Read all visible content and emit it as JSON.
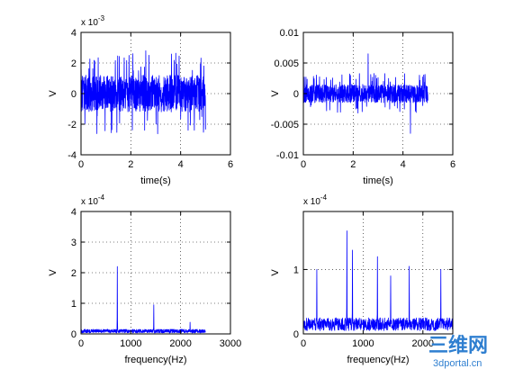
{
  "figure": {
    "background": "#ffffff",
    "line_color": "#0000ff",
    "axis_color": "#000000",
    "grid_color": "#000000"
  },
  "chart_data": [
    {
      "type": "line",
      "title": "",
      "xlabel": "time(s)",
      "ylabel": "V",
      "y_exponent": "x 10-3",
      "y_exponent_base": "x 10",
      "y_exponent_power": "-3",
      "xlim": [
        0,
        6
      ],
      "ylim": [
        -4,
        4
      ],
      "xticks": [
        0,
        2,
        4,
        6
      ],
      "xtick_labels": [
        "0",
        "2",
        "4",
        "6"
      ],
      "yticks": [
        -4,
        -2,
        0,
        2,
        4
      ],
      "ytick_labels": [
        "-4",
        "-2",
        "0",
        "2",
        "4"
      ],
      "grid": true,
      "signal": {
        "kind": "noise",
        "x_range": [
          0,
          5
        ],
        "center": 0,
        "typical_amplitude": 1.2,
        "peak_high": 2.8,
        "peak_low": -2.4,
        "samples": 900
      }
    },
    {
      "type": "line",
      "title": "",
      "xlabel": "time(s)",
      "ylabel": "V",
      "y_exponent": "",
      "xlim": [
        0,
        6
      ],
      "ylim": [
        -0.01,
        0.01
      ],
      "xticks": [
        0,
        2,
        4,
        6
      ],
      "xtick_labels": [
        "0",
        "2",
        "4",
        "6"
      ],
      "yticks": [
        -0.01,
        -0.005,
        0,
        0.005,
        0.01
      ],
      "ytick_labels": [
        "-0.01",
        "-0.005",
        "0",
        "0.005",
        "0.01"
      ],
      "grid": true,
      "signal": {
        "kind": "noise",
        "x_range": [
          0,
          5
        ],
        "center": 0,
        "typical_amplitude": 0.0015,
        "peak_high": 0.0065,
        "peak_low": -0.0065,
        "samples": 900
      }
    },
    {
      "type": "line",
      "title": "",
      "xlabel": "frequency(Hz)",
      "ylabel": "V",
      "y_exponent": "x 10-4",
      "y_exponent_base": "x 10",
      "y_exponent_power": "-4",
      "xlim": [
        0,
        3000
      ],
      "ylim": [
        0,
        4
      ],
      "xticks": [
        0,
        1000,
        2000,
        3000
      ],
      "xtick_labels": [
        "0",
        "1000",
        "2000",
        "3000"
      ],
      "yticks": [
        0,
        1,
        2,
        3,
        4
      ],
      "ytick_labels": [
        "0",
        "1",
        "2",
        "3",
        "4"
      ],
      "grid": true,
      "spectrum": {
        "x_range": [
          0,
          2500
        ],
        "floor_max": 0.15,
        "peaks": [
          {
            "x": 730,
            "y": 2.2
          },
          {
            "x": 1460,
            "y": 0.95
          },
          {
            "x": 2190,
            "y": 0.38
          }
        ],
        "samples": 700
      }
    },
    {
      "type": "line",
      "title": "",
      "xlabel": "frequency(Hz)",
      "ylabel": "V",
      "y_exponent": "x 10-4",
      "y_exponent_base": "x 10",
      "y_exponent_power": "-4",
      "xlim": [
        0,
        2500
      ],
      "ylim": [
        0,
        1.9
      ],
      "xticks": [
        0,
        1000,
        2000
      ],
      "xtick_labels": [
        "0",
        "1000",
        "2000"
      ],
      "yticks": [
        0,
        1
      ],
      "ytick_labels": [
        "0",
        "1"
      ],
      "grid": true,
      "spectrum": {
        "x_range": [
          0,
          2500
        ],
        "floor_max": 0.25,
        "peaks": [
          {
            "x": 225,
            "y": 1.0
          },
          {
            "x": 730,
            "y": 1.6
          },
          {
            "x": 820,
            "y": 1.3
          },
          {
            "x": 1240,
            "y": 1.2
          },
          {
            "x": 1460,
            "y": 0.9
          },
          {
            "x": 1770,
            "y": 1.05
          },
          {
            "x": 2300,
            "y": 1.0
          }
        ],
        "samples": 700
      }
    }
  ],
  "watermark": {
    "chinese": "三维网",
    "url": "3dportal.cn",
    "color": "#2f7fd0"
  }
}
